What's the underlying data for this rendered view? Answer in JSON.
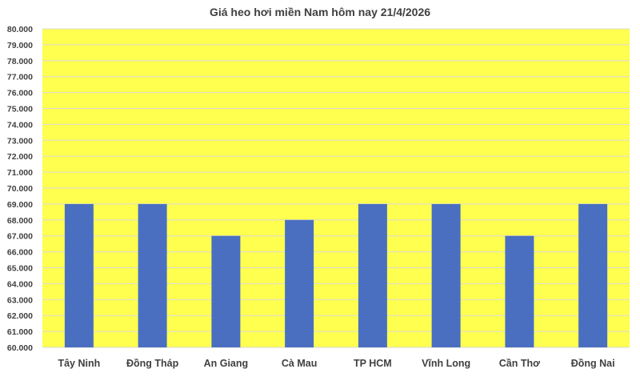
{
  "chart_data": {
    "type": "bar",
    "title": "Giá heo hơi miền Nam hôm nay 21/4/2026",
    "categories": [
      "Tây Ninh",
      "Đồng Tháp",
      "An Giang",
      "Cà Mau",
      "TP HCM",
      "Vĩnh Long",
      "Cần Thơ",
      "Đồng Nai"
    ],
    "values": [
      69000,
      69000,
      67000,
      68000,
      69000,
      69000,
      67000,
      69000
    ],
    "ylim": [
      60000,
      80000
    ],
    "yticks": [
      "60.000",
      "61.000",
      "62.000",
      "63.000",
      "64.000",
      "65.000",
      "66.000",
      "67.000",
      "68.000",
      "69.000",
      "70.000",
      "71.000",
      "72.000",
      "73.000",
      "74.000",
      "75.000",
      "76.000",
      "77.000",
      "78.000",
      "79.000",
      "80.000"
    ],
    "xlabel": "",
    "ylabel": "",
    "grid": true,
    "legend": "none",
    "colors": {
      "bar": "#4a6fc1",
      "plot_background": "#ffff4f",
      "gridline": "#d9d9d9"
    }
  }
}
